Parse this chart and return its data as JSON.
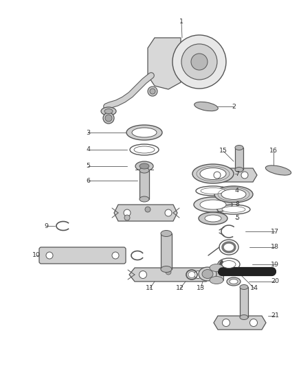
{
  "bg_color": "#ffffff",
  "line_color": "#555555",
  "label_color": "#333333",
  "fig_width": 4.38,
  "fig_height": 5.33,
  "dpi": 100,
  "parts_color_light": "#d8d8d8",
  "parts_color_mid": "#b8b8b8",
  "parts_color_dark": "#888888",
  "parts_color_black": "#333333"
}
